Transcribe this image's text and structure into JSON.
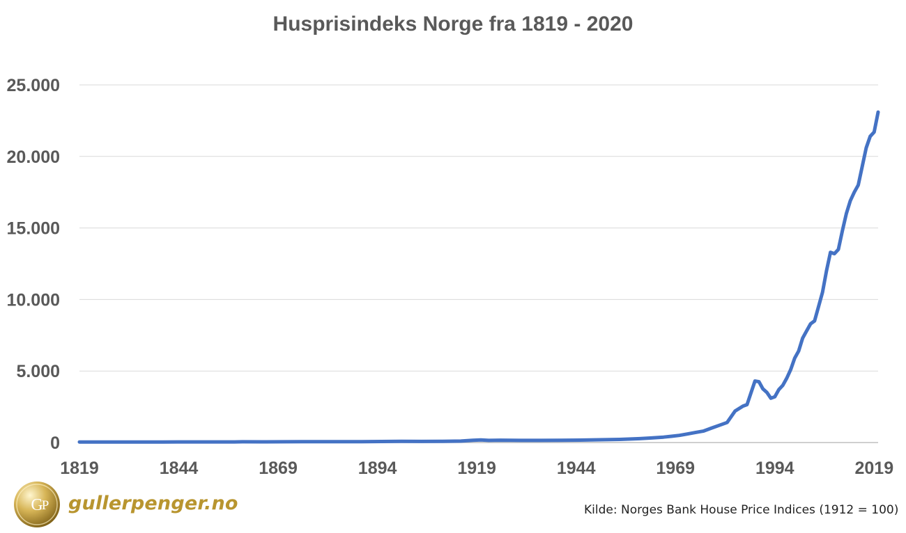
{
  "chart_data": {
    "type": "line",
    "title": "Husprisindeks Norge fra 1819 - 2020",
    "xlabel": "",
    "ylabel": "",
    "xlim": [
      1819,
      2020
    ],
    "ylim": [
      0,
      25000
    ],
    "x_ticks": [
      1819,
      1844,
      1869,
      1894,
      1919,
      1944,
      1969,
      1994,
      2019
    ],
    "x_tick_labels": [
      "1819",
      "1844",
      "1869",
      "1894",
      "1919",
      "1944",
      "1969",
      "1994",
      "2019"
    ],
    "y_ticks": [
      0,
      5000,
      10000,
      15000,
      20000,
      25000
    ],
    "y_tick_labels": [
      "0",
      "5.000",
      "10.000",
      "15.000",
      "20.000",
      "25.000"
    ],
    "grid": "horizontal",
    "legend": "none",
    "series": [
      {
        "color": "#4472c4",
        "points": [
          [
            1819,
            40
          ],
          [
            1830,
            40
          ],
          [
            1840,
            40
          ],
          [
            1850,
            42
          ],
          [
            1858,
            45
          ],
          [
            1860,
            55
          ],
          [
            1865,
            50
          ],
          [
            1870,
            55
          ],
          [
            1875,
            60
          ],
          [
            1880,
            65
          ],
          [
            1885,
            65
          ],
          [
            1890,
            65
          ],
          [
            1895,
            75
          ],
          [
            1900,
            85
          ],
          [
            1905,
            80
          ],
          [
            1910,
            85
          ],
          [
            1912,
            90
          ],
          [
            1915,
            100
          ],
          [
            1918,
            160
          ],
          [
            1920,
            185
          ],
          [
            1922,
            150
          ],
          [
            1925,
            165
          ],
          [
            1930,
            150
          ],
          [
            1935,
            150
          ],
          [
            1940,
            160
          ],
          [
            1945,
            170
          ],
          [
            1950,
            195
          ],
          [
            1955,
            220
          ],
          [
            1960,
            270
          ],
          [
            1963,
            320
          ],
          [
            1966,
            380
          ],
          [
            1968,
            440
          ],
          [
            1970,
            500
          ],
          [
            1972,
            600
          ],
          [
            1974,
            700
          ],
          [
            1976,
            800
          ],
          [
            1978,
            1000
          ],
          [
            1980,
            1200
          ],
          [
            1982,
            1400
          ],
          [
            1984,
            2200
          ],
          [
            1986,
            2550
          ],
          [
            1987,
            2650
          ],
          [
            1989,
            4300
          ],
          [
            1990,
            4250
          ],
          [
            1991,
            3750
          ],
          [
            1992,
            3500
          ],
          [
            1993,
            3100
          ],
          [
            1994,
            3200
          ],
          [
            1995,
            3700
          ],
          [
            1996,
            4000
          ],
          [
            1997,
            4500
          ],
          [
            1998,
            5100
          ],
          [
            1999,
            5900
          ],
          [
            2000,
            6400
          ],
          [
            2001,
            7300
          ],
          [
            2002,
            7800
          ],
          [
            2003,
            8300
          ],
          [
            2004,
            8500
          ],
          [
            2005,
            9500
          ],
          [
            2006,
            10500
          ],
          [
            2007,
            12000
          ],
          [
            2008,
            13300
          ],
          [
            2009,
            13200
          ],
          [
            2010,
            13500
          ],
          [
            2011,
            14800
          ],
          [
            2012,
            16000
          ],
          [
            2013,
            16900
          ],
          [
            2014,
            17500
          ],
          [
            2015,
            18000
          ],
          [
            2016,
            19300
          ],
          [
            2017,
            20600
          ],
          [
            2018,
            21400
          ],
          [
            2019,
            21700
          ],
          [
            2020,
            23100
          ]
        ]
      }
    ]
  },
  "source_text": "Kilde: Norges Bank House Price Indices (1912 = 100)",
  "logo": {
    "text": "gullerpenger.no",
    "badge_text": "GP"
  }
}
